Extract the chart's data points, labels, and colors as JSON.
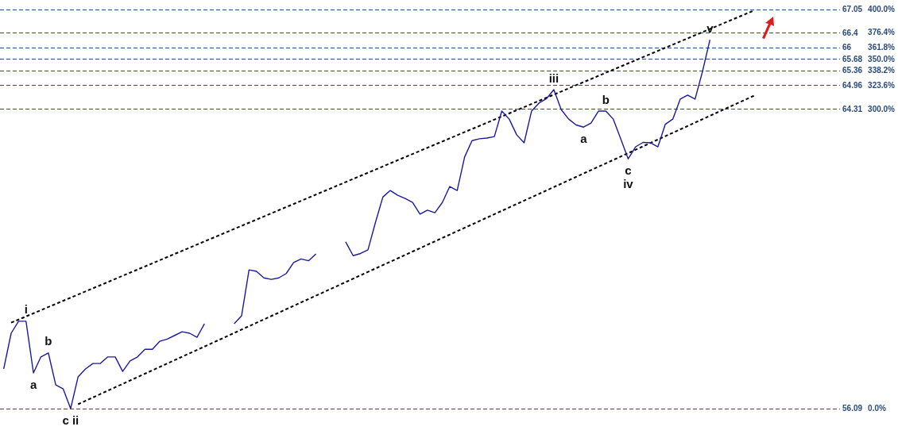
{
  "chart_data": {
    "type": "line",
    "categories": [
      null,
      null,
      null,
      null,
      null,
      null,
      null,
      null,
      null,
      null,
      null,
      null,
      null,
      null,
      null,
      null,
      null,
      null,
      null,
      null,
      null,
      null,
      null,
      null,
      null,
      null,
      null,
      null,
      null,
      null,
      null,
      null,
      null,
      null,
      null,
      null,
      null,
      null,
      null,
      null,
      null,
      null,
      null,
      null,
      null,
      null,
      null,
      null,
      null,
      null,
      null,
      null,
      null,
      null,
      null,
      null,
      null,
      null,
      null,
      null,
      null,
      null,
      null,
      null,
      null,
      null,
      null,
      null,
      null,
      null,
      null,
      null,
      null,
      null,
      null,
      null,
      null,
      null,
      null,
      null,
      null,
      null,
      null,
      null,
      null,
      null,
      null,
      null,
      null,
      null,
      null,
      null,
      null,
      null,
      null,
      null,
      null,
      null,
      null,
      null,
      null,
      null,
      null,
      null,
      null,
      null,
      null,
      null,
      null,
      null,
      null,
      null,
      null
    ],
    "ylim": [
      56.09,
      67.05
    ],
    "yticks": [
      56.09,
      64.31,
      64.96,
      65.36,
      65.68,
      66,
      66.4,
      67.05
    ],
    "y2lim": [
      0,
      400
    ],
    "y2ticks": [
      {
        "value": 0,
        "label": "0.0%"
      },
      {
        "value": 300,
        "label": "300.0%"
      },
      {
        "value": 323.6,
        "label": "323.6%"
      },
      {
        "value": 338.2,
        "label": "338.2%"
      },
      {
        "value": 350,
        "label": "350.0%"
      },
      {
        "value": 361.8,
        "label": "361.8%"
      },
      {
        "value": 376.4,
        "label": "376.4%"
      },
      {
        "value": 400,
        "label": "400.0%"
      }
    ],
    "tick_labels": "y",
    "grid": "y",
    "legend": false,
    "marker": "none",
    "series": [
      {
        "type": "line",
        "color": "#1a1aa0",
        "line_style": "solid",
        "values": [
          57.18,
          58.16,
          58.49,
          58.49,
          57.07,
          57.51,
          57.62,
          56.74,
          56.63,
          56.09,
          56.96,
          57.18,
          57.33,
          57.33,
          57.51,
          57.51,
          57.11,
          57.4,
          57.51,
          57.72,
          57.72,
          57.94,
          58.0,
          58.1,
          58.2,
          58.16,
          58.05,
          58.42,
          null,
          null,
          null,
          58.42,
          58.64,
          59.9,
          59.86,
          59.68,
          59.64,
          59.68,
          59.8,
          60.1,
          60.2,
          60.15,
          60.34,
          null,
          null,
          null,
          60.67,
          60.29,
          60.35,
          60.45,
          61.2,
          61.9,
          62.08,
          61.95,
          61.86,
          61.75,
          61.43,
          61.54,
          61.47,
          61.75,
          62.19,
          62.08,
          63.0,
          63.45,
          63.5,
          63.52,
          63.56,
          64.26,
          64.04,
          63.61,
          63.39,
          64.26,
          64.48,
          64.6,
          64.85,
          64.3,
          64.04,
          63.88,
          63.82,
          63.93,
          64.26,
          64.26,
          64.04,
          63.5,
          62.95,
          63.28,
          63.4,
          63.39,
          63.28,
          63.9,
          64.04,
          64.59,
          64.7,
          64.59,
          65.35,
          66.22,
          null,
          null,
          null,
          null,
          null,
          null,
          null,
          null,
          null,
          null,
          null,
          null,
          null,
          null,
          null,
          null,
          null
        ],
        "value_labels": [
          null,
          null,
          null,
          "i",
          "a",
          null,
          "b",
          null,
          null,
          "c ii",
          null,
          null,
          null,
          null,
          null,
          null,
          null,
          null,
          null,
          null,
          null,
          null,
          null,
          null,
          null,
          null,
          null,
          null,
          null,
          null,
          null,
          null,
          null,
          null,
          null,
          null,
          null,
          null,
          null,
          null,
          null,
          null,
          null,
          null,
          null,
          null,
          null,
          null,
          null,
          null,
          null,
          null,
          null,
          null,
          null,
          null,
          null,
          null,
          null,
          null,
          null,
          null,
          null,
          null,
          null,
          null,
          null,
          null,
          null,
          null,
          null,
          null,
          null,
          null,
          "iii",
          null,
          null,
          null,
          "a",
          null,
          null,
          "b",
          null,
          null,
          "c\niv",
          null,
          null,
          null,
          null,
          null,
          null,
          null,
          null,
          null,
          null,
          "v",
          null,
          null,
          null,
          null,
          null,
          null,
          null,
          null,
          null,
          null,
          null,
          null,
          null,
          null,
          null,
          null,
          null
        ]
      },
      {
        "type": "line",
        "color": "#000000",
        "line_style": "dashed",
        "values": [
          null,
          58.45,
          null,
          null,
          null,
          null,
          null,
          null,
          null,
          null,
          null,
          null,
          null,
          null,
          null,
          null,
          null,
          null,
          null,
          null,
          null,
          null,
          null,
          null,
          null,
          null,
          null,
          null,
          null,
          null,
          null,
          null,
          null,
          null,
          null,
          null,
          null,
          null,
          null,
          null,
          null,
          null,
          null,
          null,
          null,
          null,
          null,
          null,
          null,
          null,
          null,
          null,
          null,
          null,
          null,
          null,
          null,
          null,
          null,
          null,
          null,
          null,
          null,
          null,
          null,
          null,
          null,
          null,
          null,
          null,
          null,
          null,
          null,
          null,
          null,
          null,
          null,
          null,
          null,
          null,
          null,
          null,
          null,
          null,
          null,
          null,
          null,
          null,
          null,
          null,
          null,
          null,
          null,
          null,
          null,
          null,
          null,
          null,
          null,
          null,
          null,
          67.03,
          null,
          null,
          null,
          null,
          null,
          null,
          null,
          null,
          null,
          null,
          null
        ]
      },
      {
        "type": "line",
        "color": "#000000",
        "line_style": "dashed",
        "values": [
          null,
          null,
          null,
          null,
          null,
          null,
          null,
          null,
          null,
          null,
          56.21,
          null,
          null,
          null,
          null,
          null,
          null,
          null,
          null,
          null,
          null,
          null,
          null,
          null,
          null,
          null,
          null,
          null,
          null,
          null,
          null,
          null,
          null,
          null,
          null,
          null,
          null,
          null,
          null,
          null,
          null,
          null,
          null,
          null,
          null,
          null,
          null,
          null,
          null,
          null,
          null,
          null,
          null,
          null,
          null,
          null,
          null,
          null,
          null,
          null,
          null,
          null,
          null,
          null,
          null,
          null,
          null,
          null,
          null,
          null,
          null,
          null,
          null,
          null,
          null,
          null,
          null,
          null,
          null,
          null,
          null,
          null,
          null,
          null,
          null,
          null,
          null,
          null,
          null,
          null,
          null,
          null,
          null,
          null,
          null,
          null,
          null,
          null,
          null,
          null,
          null,
          64.69,
          null,
          null,
          null,
          null,
          null,
          null,
          null,
          null,
          null,
          null,
          null
        ]
      }
    ]
  }
}
